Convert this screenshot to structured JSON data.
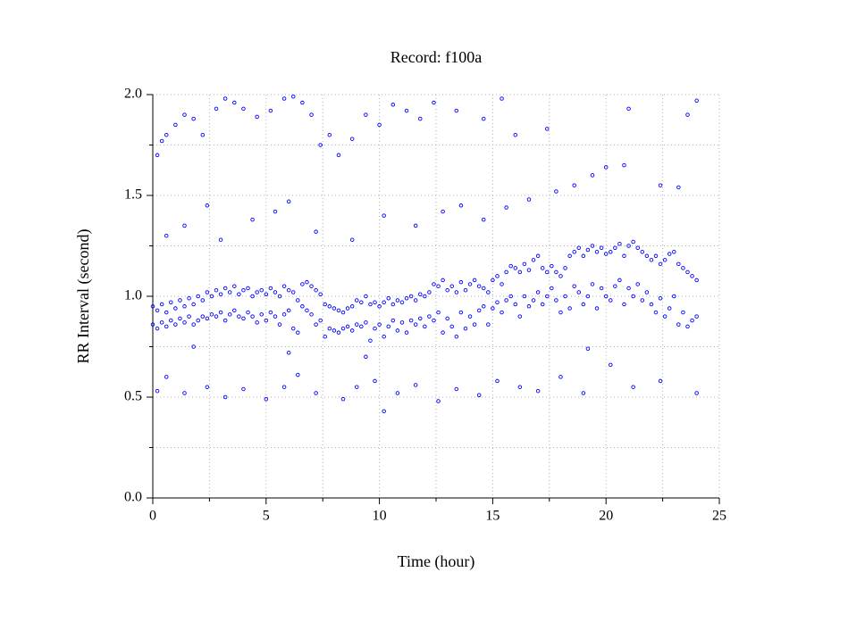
{
  "chart_data": {
    "type": "scatter",
    "title": "Record:  f100a",
    "xlabel": "Time (hour)",
    "ylabel": "RR Interval (second)",
    "xlim": [
      0,
      25
    ],
    "xticks": [
      0,
      5,
      10,
      15,
      20,
      25
    ],
    "xminor": [
      2.5,
      7.5,
      12.5,
      17.5,
      22.5
    ],
    "ylim": [
      0,
      2
    ],
    "yticks": [
      {
        "value": 0,
        "label": "0.0"
      },
      0.5,
      {
        "value": 1,
        "label": "1.0"
      },
      1.5,
      {
        "value": 2,
        "label": "2.0"
      }
    ],
    "yminor": [
      0.25,
      0.75,
      1.25,
      1.75
    ],
    "grid": true,
    "series": [
      {
        "color": "#0000ff",
        "x": [
          0,
          0.2,
          0.4,
          0.6,
          0.8,
          1,
          1.2,
          1.4,
          1.6,
          1.8,
          2,
          2.2,
          2.4,
          2.6,
          2.8,
          3,
          3.2,
          3.4,
          3.6,
          3.8,
          4,
          4.2,
          4.4,
          4.6,
          4.8,
          5,
          5.2,
          5.4,
          5.6,
          5.8,
          6,
          6.2,
          6.4,
          6.6,
          6.8,
          7,
          7.2,
          7.4,
          7.6,
          7.8,
          8,
          8.2,
          8.4,
          8.6,
          8.8,
          9,
          9.2,
          9.4,
          9.6,
          9.8,
          10,
          10.2,
          10.4,
          10.6,
          10.8,
          11,
          11.2,
          11.4,
          11.6,
          11.8,
          12,
          12.2,
          12.4,
          12.6,
          12.8,
          13,
          13.2,
          13.4,
          13.6,
          13.8,
          14,
          14.2,
          14.4,
          14.6,
          14.8,
          15,
          15.2,
          15.4,
          15.6,
          15.8,
          16,
          16.2,
          16.4,
          16.6,
          16.8,
          17,
          17.2,
          17.4,
          17.6,
          17.8,
          18,
          18.2,
          18.4,
          18.6,
          18.8,
          19,
          19.2,
          19.4,
          19.6,
          19.8,
          20,
          20.2,
          20.4,
          20.6,
          20.8,
          21,
          21.2,
          21.4,
          21.6,
          21.8,
          22,
          22.2,
          22.4,
          22.6,
          22.8,
          23,
          23.2,
          23.4,
          23.6,
          23.8,
          24
        ],
        "values": [
          0.86,
          0.84,
          0.87,
          0.85,
          0.88,
          0.86,
          0.89,
          0.87,
          0.9,
          0.86,
          0.88,
          0.9,
          0.89,
          0.91,
          0.9,
          0.92,
          0.88,
          0.91,
          0.93,
          0.9,
          0.89,
          0.92,
          0.9,
          0.87,
          0.91,
          0.88,
          0.92,
          0.9,
          0.86,
          0.91,
          0.93,
          0.84,
          0.82,
          0.95,
          0.93,
          0.91,
          0.86,
          0.88,
          0.8,
          0.84,
          0.83,
          0.82,
          0.84,
          0.85,
          0.83,
          0.86,
          0.85,
          0.87,
          0.78,
          0.84,
          0.86,
          0.8,
          0.85,
          0.88,
          0.83,
          0.87,
          0.82,
          0.88,
          0.86,
          0.89,
          0.85,
          0.9,
          0.88,
          0.92,
          0.82,
          0.89,
          0.85,
          0.8,
          0.92,
          0.84,
          0.9,
          0.86,
          0.93,
          0.95,
          0.86,
          0.94,
          0.97,
          0.92,
          0.98,
          1.0,
          0.96,
          0.9,
          1.0,
          0.95,
          0.98,
          1.02,
          0.96,
          1.0,
          1.04,
          0.98,
          0.92,
          1.0,
          0.94,
          1.05,
          1.02,
          0.96,
          1.0,
          1.06,
          0.94,
          1.04,
          1.0,
          0.98,
          1.05,
          1.08,
          0.96,
          1.04,
          1.0,
          1.06,
          0.98,
          1.02,
          0.96,
          0.92,
          0.99,
          0.9,
          0.94,
          1.0,
          0.86,
          0.92,
          0.85,
          0.88,
          0.9
        ]
      },
      {
        "color": "#0000ff",
        "x": [
          0,
          0.2,
          0.4,
          0.6,
          0.8,
          1,
          1.2,
          1.4,
          1.6,
          1.8,
          2,
          2.2,
          2.4,
          2.6,
          2.8,
          3,
          3.2,
          3.4,
          3.6,
          3.8,
          4,
          4.2,
          4.4,
          4.6,
          4.8,
          5,
          5.2,
          5.4,
          5.6,
          5.8,
          6,
          6.2,
          6.4,
          6.6,
          6.8,
          7,
          7.2,
          7.4,
          7.6,
          7.8,
          8,
          8.2,
          8.4,
          8.6,
          8.8,
          9,
          9.2,
          9.4,
          9.6,
          9.8,
          10,
          10.2,
          10.4,
          10.6,
          10.8,
          11,
          11.2,
          11.4,
          11.6,
          11.8,
          12,
          12.2,
          12.4,
          12.6,
          12.8,
          13,
          13.2,
          13.4,
          13.6,
          13.8,
          14,
          14.2,
          14.4,
          14.6,
          14.8,
          15,
          15.2,
          15.4,
          15.6,
          15.8,
          16,
          16.2,
          16.4,
          16.6,
          16.8,
          17,
          17.2,
          17.4,
          17.6,
          17.8,
          18,
          18.2,
          18.4,
          18.6,
          18.8,
          19,
          19.2,
          19.4,
          19.6,
          19.8,
          20,
          20.2,
          20.4,
          20.6,
          20.8,
          21,
          21.2,
          21.4,
          21.6,
          21.8,
          22,
          22.2,
          22.4,
          22.6,
          22.8,
          23,
          23.2,
          23.4,
          23.6,
          23.8,
          24
        ],
        "values": [
          0.95,
          0.93,
          0.96,
          0.92,
          0.97,
          0.94,
          0.98,
          0.95,
          0.99,
          0.96,
          1.0,
          0.98,
          1.02,
          1.0,
          1.03,
          1.01,
          1.04,
          1.02,
          1.05,
          1.01,
          1.03,
          1.04,
          1.0,
          1.02,
          1.03,
          1.01,
          1.04,
          1.02,
          1.0,
          1.05,
          1.03,
          1.02,
          0.98,
          1.06,
          1.07,
          1.05,
          1.03,
          1.01,
          0.96,
          0.95,
          0.94,
          0.93,
          0.92,
          0.94,
          0.95,
          0.98,
          0.97,
          1.0,
          0.96,
          0.97,
          0.95,
          0.97,
          0.99,
          0.96,
          0.98,
          0.97,
          0.99,
          1.0,
          0.98,
          1.01,
          1.0,
          1.02,
          1.06,
          1.05,
          1.08,
          1.03,
          1.05,
          1.02,
          1.07,
          1.03,
          1.06,
          1.08,
          1.05,
          1.04,
          1.02,
          1.08,
          1.1,
          1.06,
          1.12,
          1.15,
          1.14,
          1.12,
          1.16,
          1.13,
          1.18,
          1.2,
          1.14,
          1.12,
          1.15,
          1.12,
          1.1,
          1.14,
          1.2,
          1.22,
          1.24,
          1.2,
          1.23,
          1.25,
          1.22,
          1.24,
          1.21,
          1.22,
          1.24,
          1.26,
          1.2,
          1.25,
          1.27,
          1.24,
          1.22,
          1.2,
          1.18,
          1.2,
          1.16,
          1.18,
          1.21,
          1.22,
          1.16,
          1.14,
          1.12,
          1.1,
          1.08
        ]
      },
      {
        "color": "#0000ff",
        "x": [
          0.2,
          0.4,
          0.6,
          1,
          1.4,
          1.8,
          2.2,
          2.8,
          3.2,
          3.6,
          4,
          4.6,
          5.2,
          5.8,
          6.2,
          6.6,
          7,
          7.4,
          7.8,
          8.2,
          8.8,
          9.4,
          10,
          10.6,
          11.2,
          11.8,
          12.4,
          13.4,
          14.6,
          15.4,
          16,
          17.4,
          21,
          23.6,
          24,
          0.6,
          1.4,
          2.4,
          3,
          4.4,
          5.4,
          6,
          7.2,
          8.8,
          10.2,
          11.6,
          12.8,
          13.6,
          14.6,
          15.6,
          16.6,
          17.8,
          18.6,
          19.4,
          20,
          20.8,
          22.4,
          23.2,
          0.2,
          0.6,
          1.4,
          2.4,
          3.2,
          4,
          5,
          5.8,
          6.4,
          7.2,
          8.4,
          9,
          9.8,
          10.2,
          10.8,
          11.6,
          12.6,
          13.4,
          14.4,
          15.2,
          16.2,
          17,
          18,
          19,
          20.2,
          21.2,
          22.4,
          24,
          1.8,
          6,
          9.4,
          19.2
        ],
        "values": [
          1.7,
          1.77,
          1.8,
          1.85,
          1.9,
          1.88,
          1.8,
          1.93,
          1.98,
          1.96,
          1.93,
          1.89,
          1.92,
          1.98,
          1.99,
          1.96,
          1.9,
          1.75,
          1.8,
          1.7,
          1.78,
          1.9,
          1.85,
          1.95,
          1.92,
          1.88,
          1.96,
          1.92,
          1.88,
          1.98,
          1.8,
          1.83,
          1.93,
          1.9,
          1.97,
          1.3,
          1.35,
          1.45,
          1.28,
          1.38,
          1.42,
          1.47,
          1.32,
          1.28,
          1.4,
          1.35,
          1.42,
          1.45,
          1.38,
          1.44,
          1.48,
          1.52,
          1.55,
          1.6,
          1.64,
          1.65,
          1.55,
          1.54,
          0.53,
          0.6,
          0.52,
          0.55,
          0.5,
          0.54,
          0.49,
          0.55,
          0.61,
          0.52,
          0.49,
          0.55,
          0.58,
          0.43,
          0.52,
          0.56,
          0.48,
          0.54,
          0.51,
          0.58,
          0.55,
          0.53,
          0.6,
          0.52,
          0.66,
          0.55,
          0.58,
          0.52,
          0.75,
          0.72,
          0.7,
          0.74
        ]
      }
    ]
  }
}
